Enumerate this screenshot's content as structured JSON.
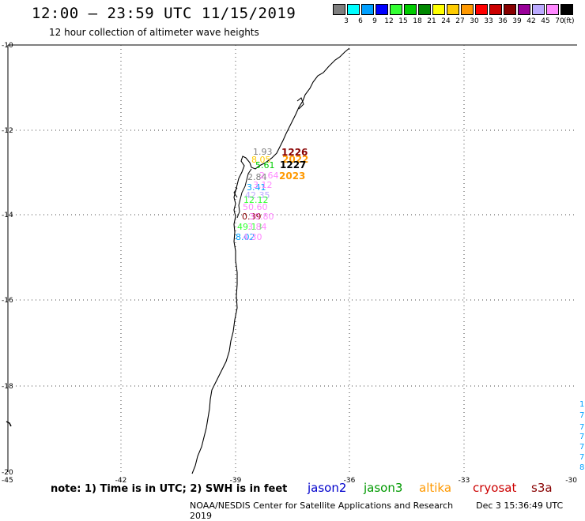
{
  "header": {
    "title": "12:00 — 23:59 UTC 11/15/2019",
    "subtitle": "12 hour collection of altimeter wave heights"
  },
  "legend": {
    "unit": "(ft)",
    "bins": [
      {
        "label": "3",
        "color": "#7f7f7f"
      },
      {
        "label": "6",
        "color": "#00ffff"
      },
      {
        "label": "9",
        "color": "#00a0ff"
      },
      {
        "label": "12",
        "color": "#0000ff"
      },
      {
        "label": "15",
        "color": "#33ff33"
      },
      {
        "label": "18",
        "color": "#00cc00"
      },
      {
        "label": "21",
        "color": "#008800"
      },
      {
        "label": "24",
        "color": "#ffff00"
      },
      {
        "label": "27",
        "color": "#ffcc00"
      },
      {
        "label": "30",
        "color": "#ff9900"
      },
      {
        "label": "33",
        "color": "#ff0000"
      },
      {
        "label": "36",
        "color": "#cc0000"
      },
      {
        "label": "39",
        "color": "#880000"
      },
      {
        "label": "42",
        "color": "#990099"
      },
      {
        "label": "45",
        "color": "#bbaaff"
      },
      {
        "label": "70",
        "color": "#ff88ff"
      },
      {
        "label": "",
        "color": "#000000"
      }
    ]
  },
  "axes": {
    "lat_labels": [
      "-10",
      "-12",
      "-14",
      "-16",
      "-18",
      "-20"
    ],
    "lon_labels": [
      "-45",
      "-42",
      "-39",
      "-36",
      "-33",
      "-30"
    ]
  },
  "observations": [
    {
      "text": "1.93",
      "color": "#7f7f7f"
    },
    {
      "text": "8.05",
      "color": "#ffcc00"
    },
    {
      "text": "5.61",
      "color": "#00cc00"
    },
    {
      "text": "2.84",
      "color": "#7f7f7f"
    },
    {
      "text": "2.64",
      "color": "#ff88ff"
    },
    {
      "text": "3.41",
      "color": "#00a0ff"
    },
    {
      "text": "3.12",
      "color": "#ff88ff"
    },
    {
      "text": "42.35",
      "color": "#bbaaff"
    },
    {
      "text": "12.12",
      "color": "#33ff33"
    },
    {
      "text": "50.60",
      "color": "#ff88ff"
    },
    {
      "text": "0.39",
      "color": "#880000"
    },
    {
      "text": "30.80",
      "color": "#ff88ff"
    },
    {
      "text": "49.13",
      "color": "#33ff33"
    },
    {
      "text": "3.84",
      "color": "#ff88ff"
    },
    {
      "text": "8.02",
      "color": "#00a0ff"
    },
    {
      "text": "4.30",
      "color": "#ff88ff"
    }
  ],
  "pass_times": [
    {
      "text": "1226",
      "color": "#880000"
    },
    {
      "text": "2022",
      "color": "#ff9900"
    },
    {
      "text": "1227",
      "color": "#000000"
    },
    {
      "text": "2023",
      "color": "#ff9900"
    }
  ],
  "edge_values": [
    "1",
    "7",
    "7",
    "7",
    "7",
    "7.",
    "8."
  ],
  "footer": {
    "note": "note:  1) Time is in UTC;  2) SWH is in feet",
    "satellites": [
      {
        "name": "jason2",
        "color": "#0000cc"
      },
      {
        "name": "jason3",
        "color": "#009900"
      },
      {
        "name": "altika",
        "color": "#ff9900"
      },
      {
        "name": "cryosat",
        "color": "#cc0000"
      },
      {
        "name": "s3a",
        "color": "#880000"
      }
    ],
    "credit": "NOAA/NESDIS Center for Satellite Applications and Research",
    "timestamp": "Dec  3 15:36:49 UTC 2019"
  }
}
